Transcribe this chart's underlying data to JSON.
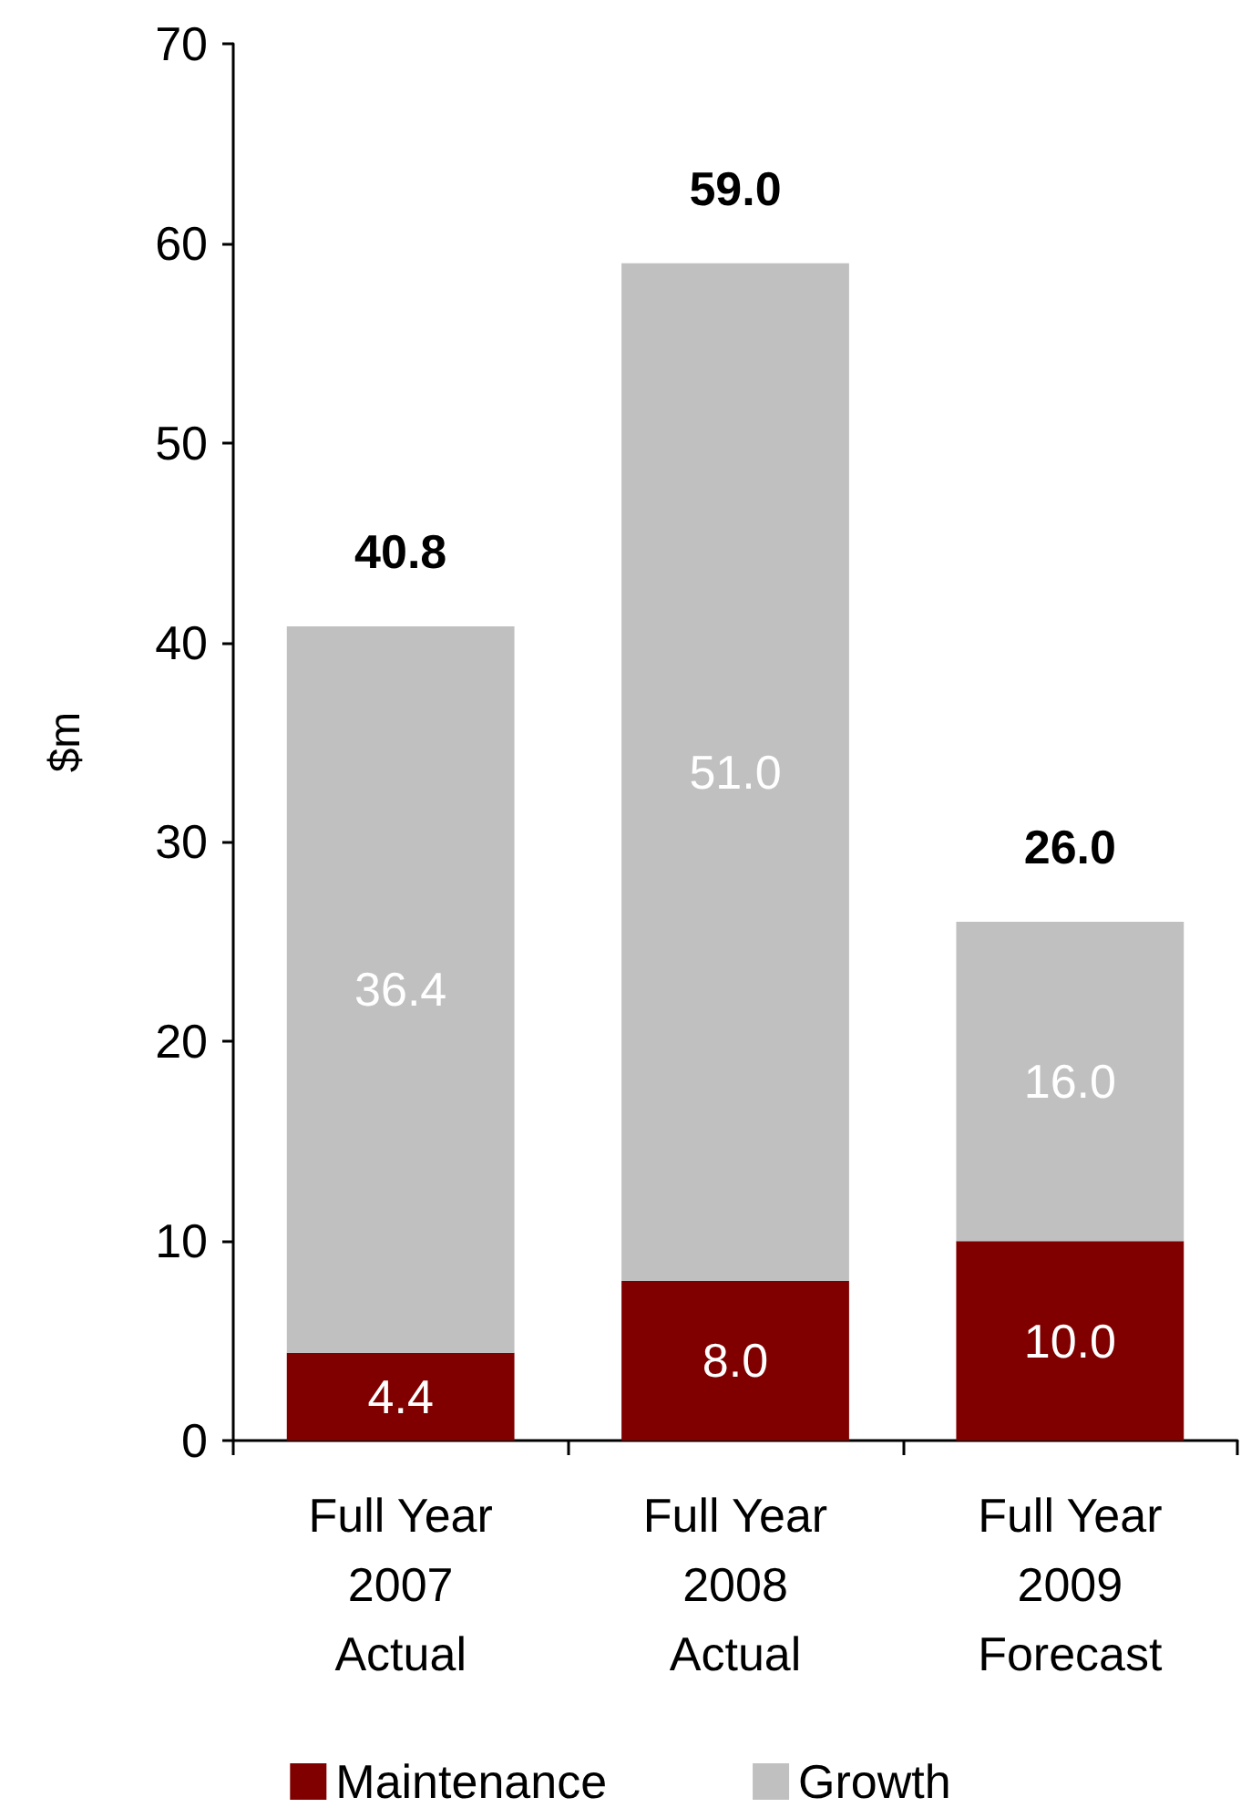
{
  "chart_data": {
    "type": "bar",
    "stacked": true,
    "ylabel": "$m",
    "categories": [
      "Full Year\n2007\nActual",
      "Full Year\n2008\nActual",
      "Full Year\n2009\nForecast"
    ],
    "series": [
      {
        "name": "Maintenance",
        "color": "#800000",
        "values": [
          4.4,
          8.0,
          10.0
        ]
      },
      {
        "name": "Growth",
        "color": "#c0c0c0",
        "values": [
          36.4,
          51.0,
          16.0
        ]
      }
    ],
    "value_labels": [
      [
        "4.4",
        "8.0",
        "10.0"
      ],
      [
        "36.4",
        "51.0",
        "16.0"
      ]
    ],
    "totals": [
      "40.8",
      "59.0",
      "26.0"
    ],
    "ylim": [
      0,
      70
    ],
    "yticks": [
      0,
      10,
      20,
      30,
      40,
      50,
      60,
      70
    ],
    "grid": false,
    "legend": "bottom"
  }
}
